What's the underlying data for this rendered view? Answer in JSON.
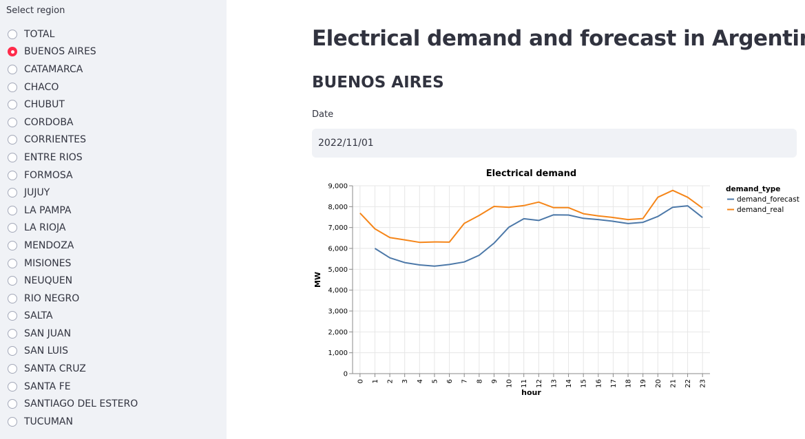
{
  "sidebar": {
    "label": "Select region",
    "selected": "BUENOS AIRES",
    "options": [
      "TOTAL",
      "BUENOS AIRES",
      "CATAMARCA",
      "CHACO",
      "CHUBUT",
      "CORDOBA",
      "CORRIENTES",
      "ENTRE RIOS",
      "FORMOSA",
      "JUJUY",
      "LA PAMPA",
      "LA RIOJA",
      "MENDOZA",
      "MISIONES",
      "NEUQUEN",
      "RIO NEGRO",
      "SALTA",
      "SAN JUAN",
      "SAN LUIS",
      "SANTA CRUZ",
      "SANTA FE",
      "SANTIAGO DEL ESTERO",
      "TUCUMAN"
    ],
    "accent_color": "#ff2b4b"
  },
  "main": {
    "title": "Electrical demand and forecast in Argentina",
    "region_heading": "BUENOS AIRES",
    "date_label": "Date",
    "date_value": "2022/11/01"
  },
  "chart_data": {
    "type": "line",
    "title": "Electrical demand",
    "xlabel": "hour",
    "ylabel": "MW",
    "x": [
      0,
      1,
      2,
      3,
      4,
      5,
      6,
      7,
      8,
      9,
      10,
      11,
      12,
      13,
      14,
      15,
      16,
      17,
      18,
      19,
      20,
      21,
      22,
      23
    ],
    "ylim": [
      0,
      9000
    ],
    "yticks": [
      0,
      1000,
      2000,
      3000,
      4000,
      5000,
      6000,
      7000,
      8000,
      9000
    ],
    "ytick_labels": [
      "0",
      "1,000",
      "2,000",
      "3,000",
      "4,000",
      "5,000",
      "6,000",
      "7,000",
      "8,000",
      "9,000"
    ],
    "grid": true,
    "legend": {
      "title": "demand_type",
      "placement": "right"
    },
    "series": [
      {
        "name": "demand_forecast",
        "color": "#4c78a8",
        "values": [
          null,
          6000,
          5550,
          5320,
          5210,
          5150,
          5230,
          5350,
          5670,
          6250,
          7020,
          7420,
          7340,
          7610,
          7600,
          7440,
          7380,
          7300,
          7190,
          7250,
          7530,
          7970,
          8040,
          7480
        ]
      },
      {
        "name": "demand_real",
        "color": "#f58518",
        "values": [
          7690,
          6940,
          6520,
          6410,
          6290,
          6310,
          6300,
          7200,
          7580,
          8010,
          7970,
          8050,
          8220,
          7950,
          7950,
          7660,
          7560,
          7480,
          7380,
          7430,
          8450,
          8780,
          8450,
          7930
        ]
      }
    ]
  }
}
